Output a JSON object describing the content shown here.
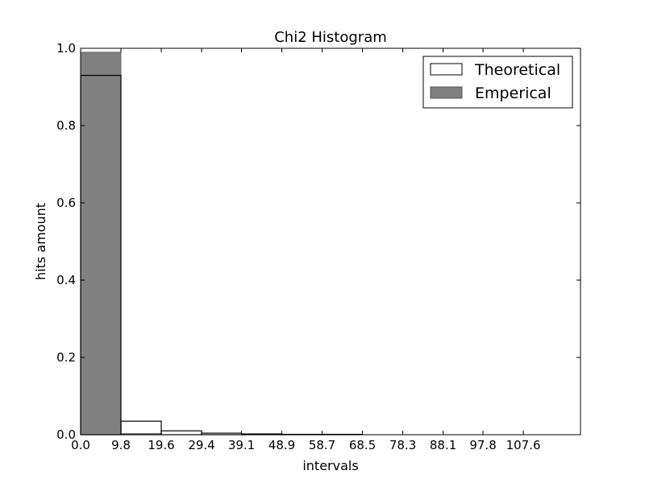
{
  "chart_data": {
    "type": "bar",
    "title": "Chi2 Histogram",
    "xlabel": "intervals",
    "ylabel": "hits amount",
    "xlim": [
      0,
      121.5
    ],
    "ylim": [
      0,
      1.0
    ],
    "xticks": [
      "0.0",
      "9.8",
      "19.6",
      "29.4",
      "39.1",
      "48.9",
      "58.7",
      "68.5",
      "78.3",
      "88.1",
      "97.8",
      "107.6"
    ],
    "xtick_values": [
      0.0,
      9.8,
      19.6,
      29.4,
      39.1,
      48.9,
      58.7,
      68.5,
      78.3,
      88.1,
      97.8,
      107.6
    ],
    "yticks": [
      "0.0",
      "0.2",
      "0.4",
      "0.6",
      "0.8",
      "1.0"
    ],
    "ytick_values": [
      0.0,
      0.2,
      0.4,
      0.6,
      0.8,
      1.0
    ],
    "bin_edges": [
      0.0,
      9.8,
      19.6,
      29.4,
      39.1,
      48.9,
      58.7,
      68.5
    ],
    "series": [
      {
        "name": "Emperical",
        "values": [
          0.99,
          0.003,
          0.0,
          0.0,
          0.0,
          0.0,
          0.0
        ],
        "color": "#808080"
      },
      {
        "name": "Theoretical",
        "values": [
          0.93,
          0.035,
          0.01,
          0.004,
          0.002,
          0.001,
          0.001
        ],
        "color": "#ffffff"
      }
    ],
    "legend": {
      "position": "top-right",
      "entries": [
        "Theoretical",
        "Emperical"
      ]
    },
    "grid": false
  }
}
